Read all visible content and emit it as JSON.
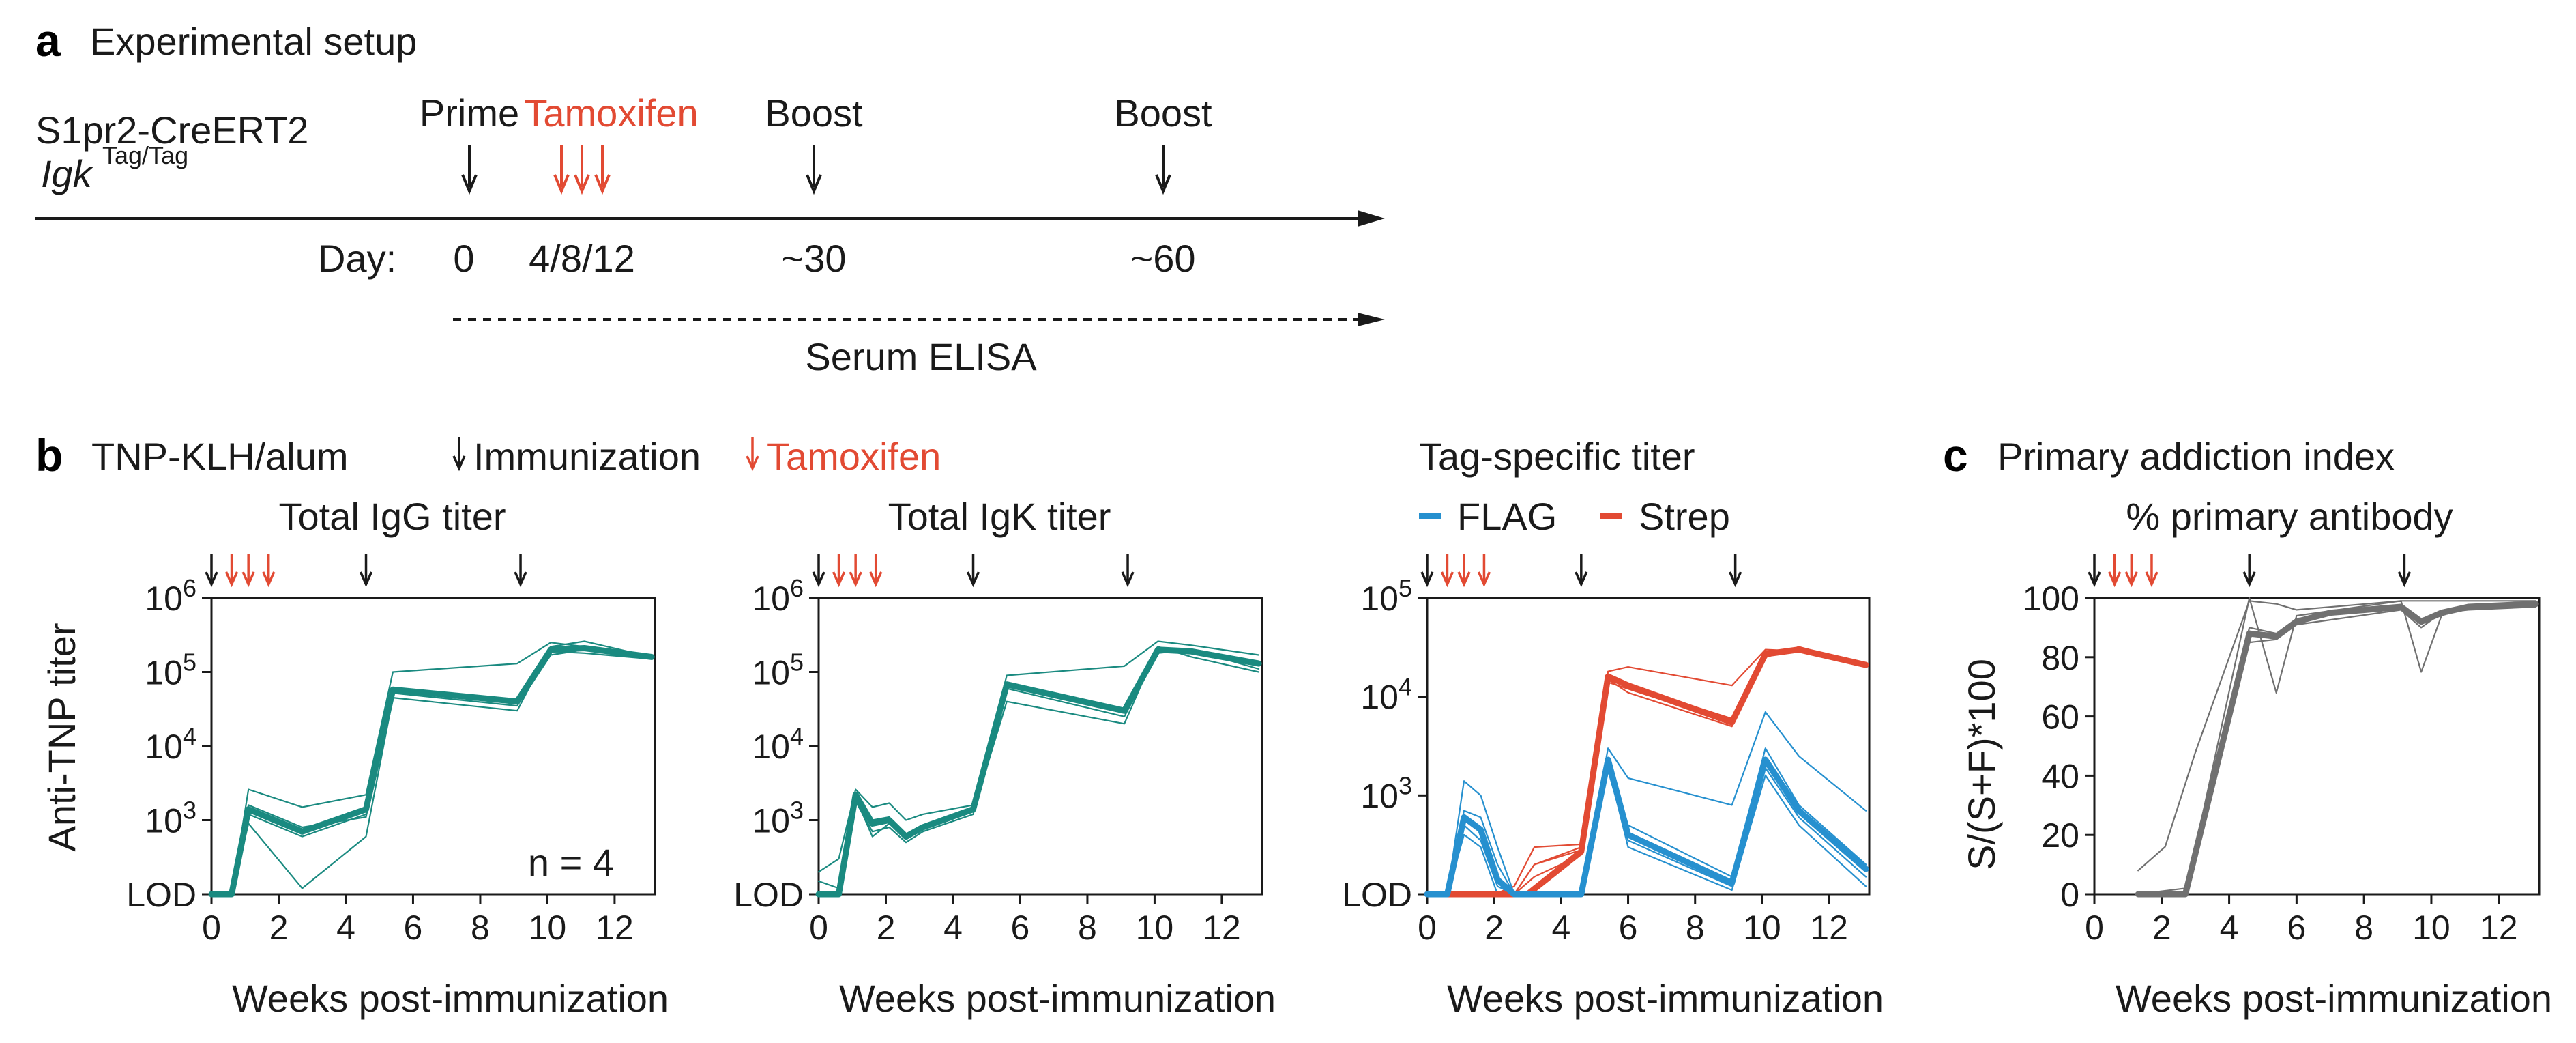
{
  "colors": {
    "teal": "#1a8a80",
    "red": "#e24a33",
    "blue": "#2690cf",
    "gray": "#707070",
    "black": "#1a1a1a"
  },
  "panel_a": {
    "letter": "a",
    "title": "Experimental setup",
    "mouse_line1": "S1pr2-CreERT2",
    "mouse_gene": "Igk",
    "mouse_sup": "Tag/Tag",
    "events": [
      "Prime",
      "Tamoxifen",
      "Boost",
      "Boost"
    ],
    "day_label": "Day:",
    "days": [
      "0",
      "4/8/12",
      "~30",
      "~60"
    ],
    "serum_label": "Serum ELISA"
  },
  "panel_b": {
    "letter": "b",
    "antigen": "TNP-KLH/alum",
    "legend_immunization": "Immunization",
    "legend_tamoxifen": "Tamoxifen",
    "tag_title": "Tag-specific titer",
    "legend_flag": "FLAG",
    "legend_strep": "Strep",
    "ylabel": "Anti-TNP titer",
    "n_label": "n = 4"
  },
  "panel_c": {
    "letter": "c",
    "title": "Primary addiction index",
    "ylabel": "S/(S+F)*100"
  },
  "chart_data": [
    {
      "type": "line",
      "title": "Total IgG titer",
      "xlabel": "Weeks post-immunization",
      "ylabel": "Anti-TNP titer",
      "xlim": [
        0,
        13.2
      ],
      "xticks": [
        0,
        2,
        4,
        6,
        8,
        10,
        12
      ],
      "ylog": true,
      "ylim": [
        100,
        1000000
      ],
      "ytick_labels": [
        "LOD",
        "10^3",
        "10^4",
        "10^5",
        "10^6"
      ],
      "immunization_weeks": [
        0,
        4.6,
        9.2
      ],
      "tamoxifen_weeks": [
        0.6,
        1.1,
        1.7
      ],
      "series": [
        {
          "role": "mean",
          "color": "teal",
          "x": [
            0,
            0.6,
            1.1,
            2.7,
            4.6,
            5.4,
            9.1,
            10.1,
            11.1,
            13.1
          ],
          "y": [
            100,
            100,
            1400,
            700,
            1400,
            58000,
            40000,
            200000,
            210000,
            160000
          ]
        },
        {
          "role": "individual",
          "color": "teal",
          "x": [
            0,
            0.6,
            1.1,
            2.7,
            4.6,
            5.4,
            9.1,
            10.1,
            11.1,
            13.1
          ],
          "y": [
            100,
            100,
            2600,
            1500,
            2200,
            100000,
            130000,
            250000,
            220000,
            170000
          ]
        },
        {
          "role": "individual",
          "color": "teal",
          "x": [
            0,
            0.6,
            1.1,
            2.7,
            4.6,
            5.4,
            9.1,
            10.1,
            11.1,
            13.1
          ],
          "y": [
            100,
            100,
            1200,
            600,
            1200,
            55000,
            38000,
            190000,
            180000,
            150000
          ]
        },
        {
          "role": "individual",
          "color": "teal",
          "x": [
            0,
            0.6,
            1.1,
            2.7,
            4.6,
            5.4,
            9.1,
            10.1,
            11.1,
            13.1
          ],
          "y": [
            100,
            100,
            900,
            120,
            600,
            45000,
            30000,
            220000,
            260000,
            160000
          ]
        },
        {
          "role": "individual",
          "color": "teal",
          "x": [
            0,
            0.6,
            1.1,
            2.7,
            4.6,
            5.4,
            9.1,
            10.1,
            11.1,
            13.1
          ],
          "y": [
            100,
            100,
            1600,
            800,
            1100,
            52000,
            35000,
            170000,
            200000,
            150000
          ]
        }
      ]
    },
    {
      "type": "line",
      "title": "Total IgK titer",
      "xlabel": "Weeks post-immunization",
      "xlim": [
        0,
        13.2
      ],
      "xticks": [
        0,
        2,
        4,
        6,
        8,
        10,
        12
      ],
      "ylog": true,
      "ylim": [
        100,
        1000000
      ],
      "ytick_labels": [
        "LOD",
        "10^3",
        "10^4",
        "10^5",
        "10^6"
      ],
      "immunization_weeks": [
        0,
        4.6,
        9.2
      ],
      "tamoxifen_weeks": [
        0.6,
        1.1,
        1.7
      ],
      "series": [
        {
          "role": "mean",
          "color": "teal",
          "x": [
            0,
            0.6,
            1.1,
            1.6,
            2.1,
            2.6,
            3.1,
            4.6,
            5.6,
            9.1,
            10.1,
            11.1,
            13.1
          ],
          "y": [
            100,
            100,
            2200,
            900,
            1000,
            600,
            800,
            1400,
            68000,
            30000,
            200000,
            190000,
            130000
          ]
        },
        {
          "role": "individual",
          "color": "teal",
          "x": [
            0,
            0.6,
            1.1,
            1.6,
            2.1,
            2.6,
            3.1,
            4.6,
            5.6,
            9.1,
            10.1,
            11.1,
            13.1
          ],
          "y": [
            200,
            300,
            2600,
            1500,
            1700,
            1000,
            1200,
            1600,
            90000,
            120000,
            260000,
            230000,
            170000
          ]
        },
        {
          "role": "individual",
          "color": "teal",
          "x": [
            0,
            0.6,
            1.1,
            1.6,
            2.1,
            2.6,
            3.1,
            4.6,
            5.6,
            9.1,
            10.1,
            11.1,
            13.1
          ],
          "y": [
            100,
            100,
            1800,
            700,
            800,
            500,
            700,
            1200,
            60000,
            25000,
            180000,
            200000,
            110000
          ]
        },
        {
          "role": "individual",
          "color": "teal",
          "x": [
            0,
            0.6,
            1.1,
            1.6,
            2.1,
            2.6,
            3.1,
            4.6,
            5.6,
            9.1,
            10.1,
            11.1,
            13.1
          ],
          "y": [
            100,
            100,
            2000,
            600,
            900,
            550,
            750,
            1300,
            40000,
            20000,
            220000,
            160000,
            100000
          ]
        },
        {
          "role": "individual",
          "color": "teal",
          "x": [
            0,
            0.6,
            1.1,
            1.6,
            2.1,
            2.6,
            3.1,
            4.6,
            5.6,
            9.1,
            10.1,
            11.1,
            13.1
          ],
          "y": [
            150,
            120,
            2300,
            1000,
            1100,
            650,
            850,
            1400,
            70000,
            28000,
            200000,
            180000,
            140000
          ]
        }
      ]
    },
    {
      "type": "line",
      "title": "Tag-specific titer",
      "xlabel": "Weeks post-immunization",
      "xlim": [
        0,
        13.2
      ],
      "xticks": [
        0,
        2,
        4,
        6,
        8,
        10,
        12
      ],
      "ylog": true,
      "ylim": [
        100,
        100000
      ],
      "ytick_labels": [
        "LOD",
        "10^3",
        "10^4",
        "10^5"
      ],
      "immunization_weeks": [
        0,
        4.6,
        9.2
      ],
      "tamoxifen_weeks": [
        0.6,
        1.1,
        1.7
      ],
      "legend": [
        "FLAG",
        "Strep"
      ],
      "series": [
        {
          "name": "Strep",
          "role": "mean",
          "color": "red",
          "x": [
            0,
            2.0,
            3.0,
            4.6,
            5.4,
            6.0,
            9.1,
            10.1,
            11.1,
            13.1
          ],
          "y": [
            100,
            100,
            100,
            270,
            16000,
            13000,
            5500,
            27000,
            30000,
            21000
          ]
        },
        {
          "name": "Strep",
          "role": "individual",
          "color": "red",
          "x": [
            0,
            2.0,
            2.6,
            3.2,
            4.6,
            5.4,
            6.0,
            9.1,
            10.1,
            11.1,
            13.1
          ],
          "y": [
            100,
            100,
            100,
            200,
            300,
            18000,
            20000,
            13000,
            30000,
            29000,
            21000
          ]
        },
        {
          "name": "Strep",
          "role": "individual",
          "color": "red",
          "x": [
            0,
            2.0,
            2.6,
            3.2,
            4.6,
            5.4,
            6.0,
            9.1,
            10.1,
            11.1,
            13.1
          ],
          "y": [
            100,
            100,
            120,
            300,
            320,
            15000,
            11000,
            5000,
            25000,
            32000,
            21000
          ]
        },
        {
          "name": "Strep",
          "role": "individual",
          "color": "red",
          "x": [
            0,
            2.0,
            2.6,
            3.2,
            4.6,
            5.4,
            6.0,
            9.1,
            10.1,
            11.1,
            13.1
          ],
          "y": [
            100,
            100,
            100,
            150,
            250,
            14000,
            12000,
            5500,
            28000,
            30000,
            20000
          ]
        },
        {
          "name": "Strep",
          "role": "individual",
          "color": "red",
          "x": [
            0,
            2.0,
            2.6,
            3.2,
            4.6,
            5.4,
            6.0,
            9.1,
            10.1,
            11.1,
            13.1
          ],
          "y": [
            100,
            100,
            100,
            200,
            280,
            16000,
            13000,
            6000,
            26000,
            29000,
            22000
          ]
        },
        {
          "name": "FLAG",
          "role": "mean",
          "color": "blue",
          "x": [
            0,
            0.6,
            1.1,
            1.6,
            2.1,
            2.6,
            3.0,
            4.6,
            5.4,
            6.0,
            9.1,
            10.1,
            11.1,
            13.1
          ],
          "y": [
            100,
            100,
            600,
            450,
            140,
            100,
            100,
            100,
            2300,
            400,
            130,
            2300,
            700,
            180
          ]
        },
        {
          "name": "FLAG",
          "role": "individual",
          "color": "blue",
          "x": [
            0,
            0.6,
            1.1,
            1.6,
            2.1,
            2.6,
            3.0,
            4.6,
            5.4,
            6.0,
            9.1,
            10.1,
            11.1,
            13.1
          ],
          "y": [
            100,
            100,
            1400,
            1000,
            300,
            100,
            100,
            100,
            3000,
            1500,
            800,
            7000,
            2500,
            700
          ]
        },
        {
          "name": "FLAG",
          "role": "individual",
          "color": "blue",
          "x": [
            0,
            0.6,
            1.1,
            1.6,
            2.1,
            2.6,
            3.0,
            4.6,
            5.4,
            6.0,
            9.1,
            10.1,
            11.1,
            13.1
          ],
          "y": [
            100,
            100,
            700,
            600,
            200,
            100,
            100,
            100,
            2200,
            500,
            150,
            3000,
            800,
            200
          ]
        },
        {
          "name": "FLAG",
          "role": "individual",
          "color": "blue",
          "x": [
            0,
            0.6,
            1.1,
            1.6,
            2.1,
            2.6,
            3.0,
            4.6,
            5.4,
            6.0,
            9.1,
            10.1,
            11.1,
            13.1
          ],
          "y": [
            100,
            100,
            400,
            300,
            100,
            100,
            100,
            100,
            2000,
            300,
            110,
            1600,
            500,
            120
          ]
        },
        {
          "name": "FLAG",
          "role": "individual",
          "color": "blue",
          "x": [
            0,
            0.6,
            1.1,
            1.6,
            2.1,
            2.6,
            3.0,
            4.6,
            5.4,
            6.0,
            9.1,
            10.1,
            11.1,
            13.1
          ],
          "y": [
            100,
            100,
            500,
            350,
            120,
            100,
            100,
            100,
            1800,
            350,
            120,
            1900,
            600,
            150
          ]
        }
      ]
    },
    {
      "type": "line",
      "title": "% primary antibody",
      "xlabel": "Weeks post-immunization",
      "ylabel": "S/(S+F)*100",
      "xlim": [
        0,
        13.2
      ],
      "xticks": [
        0,
        2,
        4,
        6,
        8,
        10,
        12
      ],
      "ylim": [
        0,
        100
      ],
      "yticks": [
        0,
        20,
        40,
        60,
        80,
        100
      ],
      "immunization_weeks": [
        0,
        4.6,
        9.2
      ],
      "tamoxifen_weeks": [
        0.6,
        1.1,
        1.7
      ],
      "series": [
        {
          "role": "mean",
          "color": "gray",
          "x": [
            1.3,
            2.7,
            4.6,
            5.4,
            6.0,
            7.0,
            9.1,
            9.7,
            10.3,
            11.1,
            13.1
          ],
          "y": [
            0,
            0,
            88,
            87,
            92,
            95,
            97,
            92,
            95,
            97,
            98
          ]
        },
        {
          "role": "individual",
          "color": "gray",
          "x": [
            1.3,
            2.1,
            3.0,
            4.6,
            5.4,
            6.0,
            9.1,
            9.7,
            10.3,
            11.1,
            13.1
          ],
          "y": [
            8,
            16,
            48,
            99,
            98,
            96,
            99,
            99,
            99,
            99,
            99
          ]
        },
        {
          "role": "individual",
          "color": "gray",
          "x": [
            1.3,
            2.7,
            4.6,
            5.4,
            6.0,
            9.1,
            9.7,
            10.3,
            11.1,
            13.1
          ],
          "y": [
            0,
            0,
            100,
            68,
            94,
            99,
            75,
            94,
            97,
            98
          ]
        },
        {
          "role": "individual",
          "color": "gray",
          "x": [
            1.3,
            2.7,
            4.6,
            5.4,
            6.0,
            9.1,
            9.7,
            10.3,
            11.1,
            13.1
          ],
          "y": [
            0,
            0,
            90,
            88,
            93,
            97,
            93,
            95,
            97,
            98
          ]
        },
        {
          "role": "individual",
          "color": "gray",
          "x": [
            1.3,
            2.7,
            4.6,
            5.4,
            6.0,
            9.1,
            9.7,
            10.3,
            11.1,
            13.1
          ],
          "y": [
            0,
            2,
            85,
            86,
            91,
            96,
            90,
            95,
            96,
            97
          ]
        }
      ]
    }
  ]
}
